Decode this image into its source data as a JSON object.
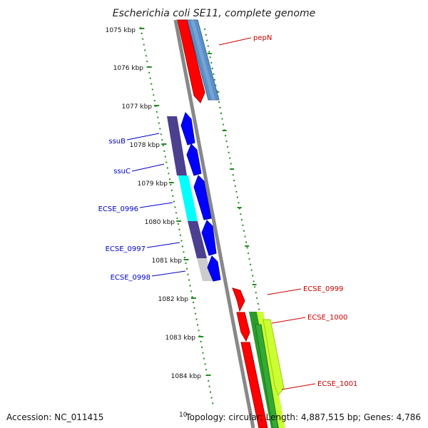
{
  "title": "Escherichia coli SE11, complete genome",
  "ticks": [
    "1075 kbp",
    "1076 kbp",
    "1077 kbp",
    "1078 kbp",
    "1079 kbp",
    "1080 kbp",
    "1081 kbp",
    "1082 kbp",
    "1083 kbp",
    "1084 kbp"
  ],
  "tick_partial": "10",
  "genes_reverse": [
    {
      "name": "ssuB",
      "color": "#0000cc"
    },
    {
      "name": "ssuC",
      "color": "#0000cc"
    },
    {
      "name": "ECSE_0996",
      "color": "#0000cc"
    },
    {
      "name": "ECSE_0997",
      "color": "#0000cc"
    },
    {
      "name": "ECSE_0998",
      "color": "#0000cc"
    }
  ],
  "genes_forward": [
    {
      "name": "pepN",
      "color": "#cc0000"
    },
    {
      "name": "ECSE_0999",
      "color": "#cc0000"
    },
    {
      "name": "ECSE_1000",
      "color": "#cc0000"
    },
    {
      "name": "ECSE_1001",
      "color": "#cc0000"
    }
  ],
  "colors": {
    "forward_gene": "#ff0000",
    "reverse_gene": "#0000ff",
    "cog_steelblue": "#5b8fc7",
    "cog_slate": "#4b3f8f",
    "cog_cyan": "#00ffff",
    "cog_lightgray": "#cccccc",
    "cog_green": "#2a9a2a",
    "cog_lime": "#ccff33",
    "backbone": "#888888",
    "ruler": "#228B22"
  },
  "footer": {
    "accession": "Accession: NC_011415",
    "stats": "Topology: circular; Length: 4,887,515 bp; Genes: 4,786"
  }
}
